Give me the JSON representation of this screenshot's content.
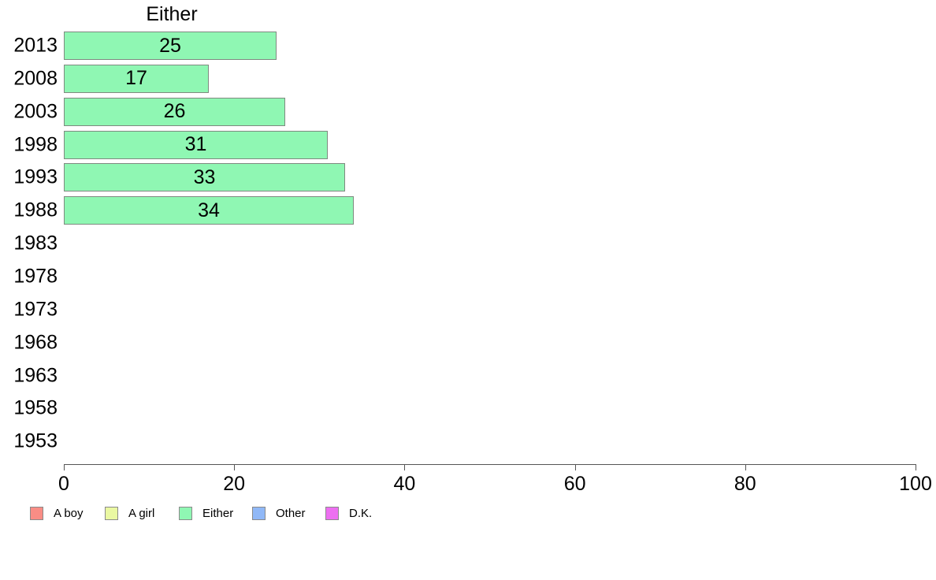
{
  "chart_data": {
    "type": "bar",
    "orientation": "horizontal",
    "title": "Either",
    "categories": [
      "2013",
      "2008",
      "2003",
      "1998",
      "1993",
      "1988",
      "1983",
      "1978",
      "1973",
      "1968",
      "1963",
      "1958",
      "1953"
    ],
    "series": [
      {
        "name": "Either",
        "values": [
          25,
          17,
          26,
          31,
          33,
          34,
          null,
          null,
          null,
          null,
          null,
          null,
          null
        ]
      }
    ],
    "bar_color": "#8ff7b3",
    "bar_border_color": "#7f8a80",
    "value_labels_inside_bars": true,
    "xlabel": "",
    "ylabel": "",
    "xlim": [
      0,
      100
    ],
    "x_ticks": [
      0,
      20,
      40,
      60,
      80,
      100
    ],
    "grid": false,
    "legend_position": "bottom-left",
    "legend": [
      {
        "label": "A boy",
        "color": "#f98d85"
      },
      {
        "label": "A girl",
        "color": "#eaf8a2"
      },
      {
        "label": "Either",
        "color": "#8ff7b3"
      },
      {
        "label": "Other",
        "color": "#90b8f7"
      },
      {
        "label": "D.K.",
        "color": "#ed6ff1"
      }
    ]
  }
}
